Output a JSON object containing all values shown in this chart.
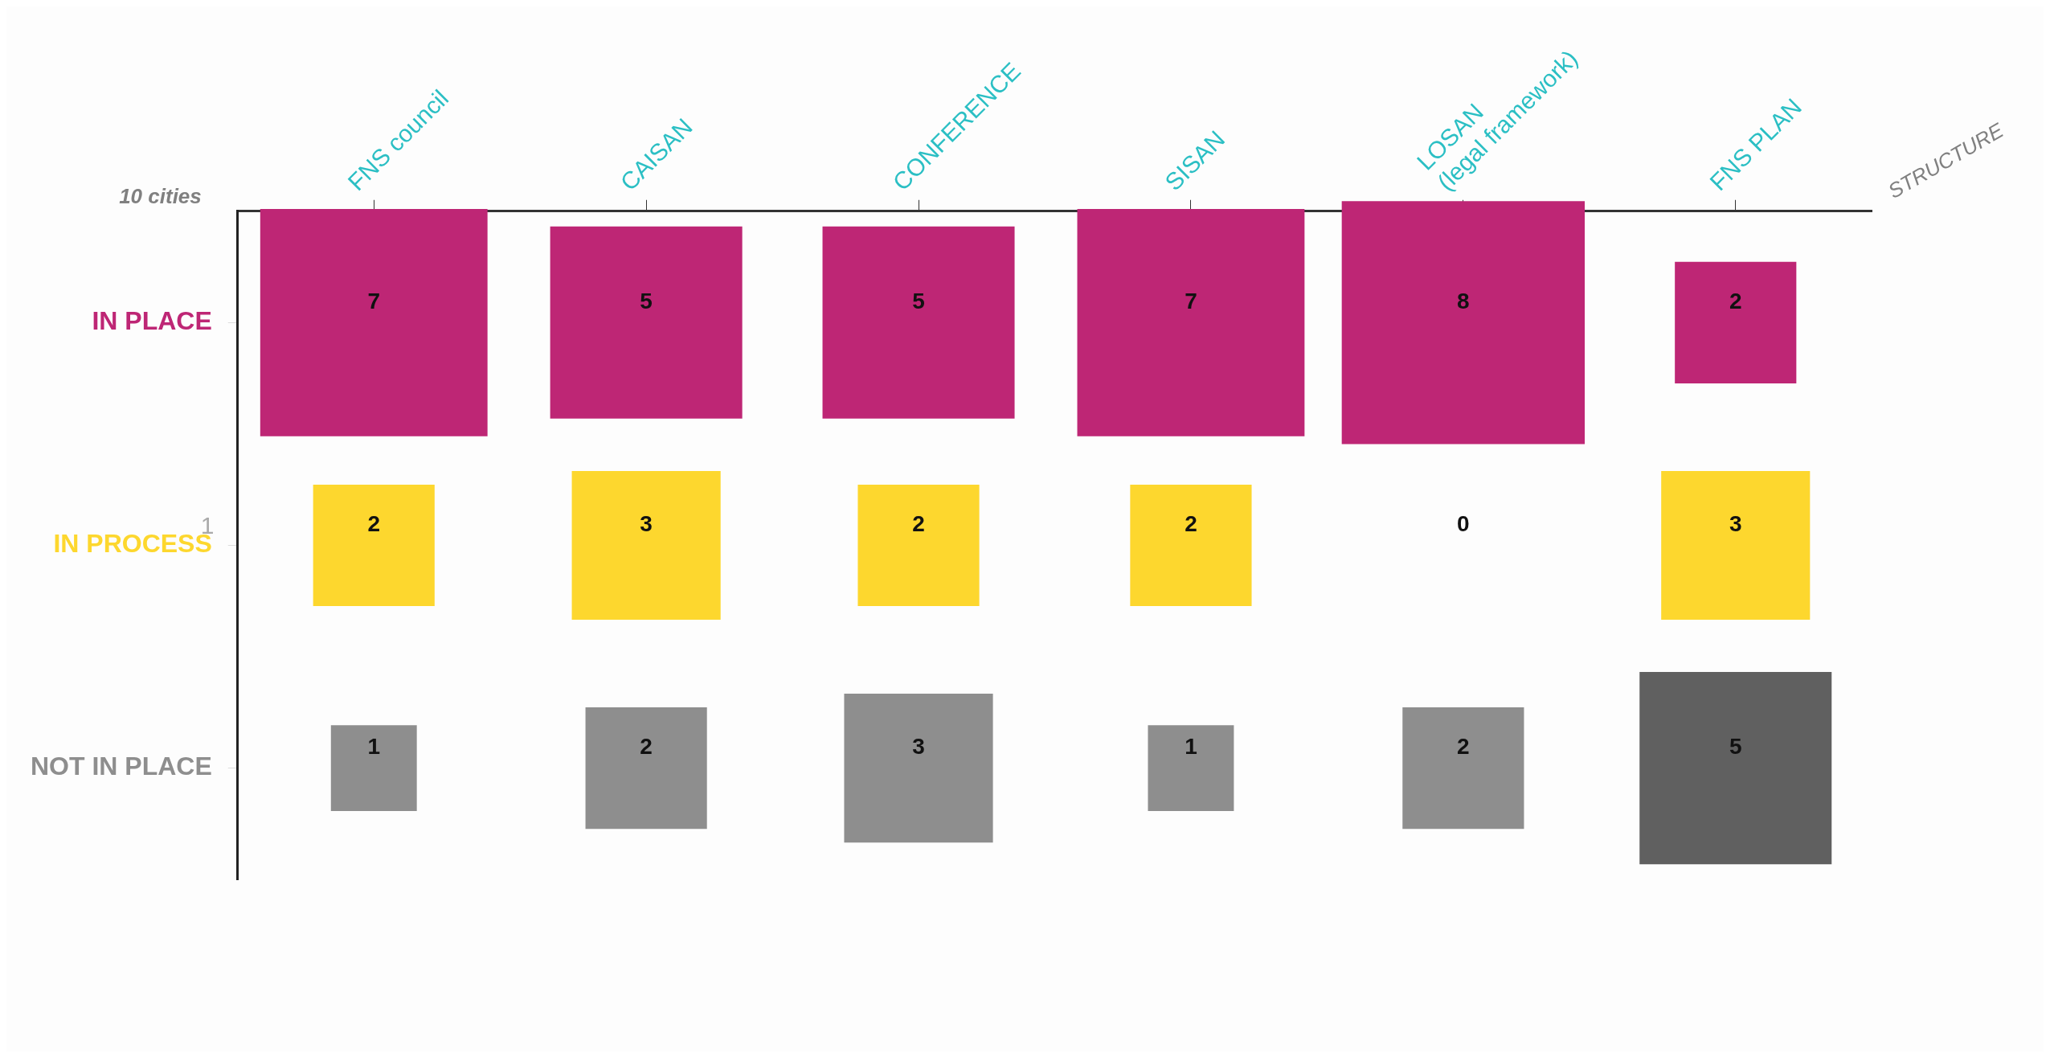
{
  "chart_data": {
    "type": "heatmap",
    "xlabel": "STRUCTURE",
    "ylabel": "10 cities",
    "annotations": [
      "1"
    ],
    "categories": [
      "FNS council",
      "CAISAN",
      "CONFERENCE",
      "SISAN",
      "LOSAN\n(legal framework)",
      "FNS PLAN"
    ],
    "y_categories": [
      "IN PLACE",
      "IN PROCESS",
      "NOT IN PLACE"
    ],
    "cells": [
      [
        7,
        5,
        5,
        7,
        8,
        2
      ],
      [
        2,
        3,
        2,
        2,
        0,
        3
      ],
      [
        1,
        2,
        3,
        1,
        2,
        5
      ]
    ],
    "colors": [
      [
        "#be2675",
        "#be2675",
        "#be2675",
        "#be2675",
        "#be2675",
        "#be2675"
      ],
      [
        "#fdd72e",
        "#fdd72e",
        "#fdd72e",
        "#fdd72e",
        "#fdd72e",
        "#fdd72e"
      ],
      [
        "#8e8e8e",
        "#8e8e8e",
        "#8e8e8e",
        "#8e8e8e",
        "#8e8e8e",
        "#606060"
      ]
    ],
    "data_labels": true
  }
}
